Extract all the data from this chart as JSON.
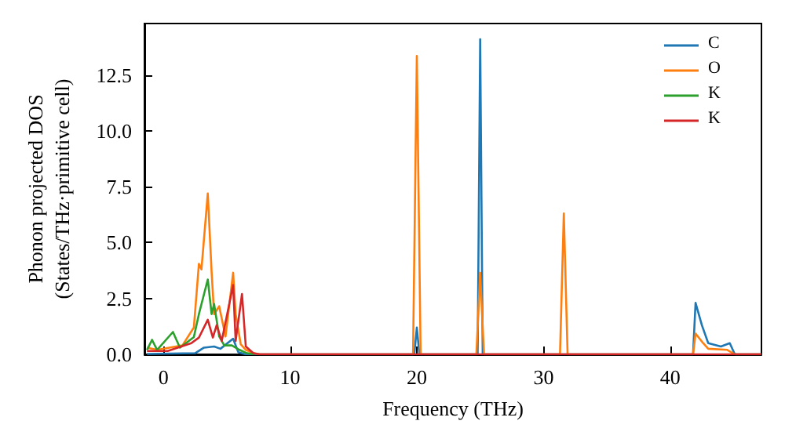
{
  "chart_data": {
    "type": "line",
    "xlabel": "Frequency (THz)",
    "ylabel": "Phonon projected DOS\n(States/THz·primitive cell)",
    "xlim": [
      -1.5,
      47.2
    ],
    "ylim": [
      0,
      14.8
    ],
    "xticks": [
      0,
      10,
      20,
      30,
      40
    ],
    "yticks": [
      {
        "value": 0,
        "label": "0.0"
      },
      2.5,
      {
        "value": 5,
        "label": "5.0"
      },
      7.5,
      {
        "value": 10,
        "label": "10.0"
      },
      12.5
    ],
    "grid": false,
    "legend": "top right",
    "marker": "none",
    "line_style": "solid",
    "series": [
      {
        "name": "C",
        "color": "#1f77b4",
        "x": [
          -1.3,
          2.5,
          3.2,
          4.0,
          4.5,
          5.5,
          5.9,
          6.5,
          19.8,
          20.0,
          20.2,
          24.8,
          25.0,
          25.2,
          41.8,
          42.0,
          42.5,
          43.0,
          44.0,
          44.7,
          45.1,
          47.2
        ],
        "values": [
          0.02,
          0.05,
          0.3,
          0.35,
          0.25,
          0.7,
          0.1,
          0,
          0,
          1.2,
          0,
          0,
          14.1,
          0,
          0,
          2.3,
          1.3,
          0.5,
          0.35,
          0.5,
          0,
          0
        ]
      },
      {
        "name": "O",
        "color": "#ff7f0e",
        "x": [
          -1.3,
          -0.5,
          1.5,
          2.4,
          2.8,
          3.0,
          3.5,
          3.8,
          4.0,
          4.4,
          4.9,
          5.5,
          5.7,
          6.1,
          6.5,
          7.1,
          7.6,
          19.7,
          20.0,
          20.3,
          24.7,
          25.0,
          25.3,
          31.3,
          31.6,
          31.9,
          41.8,
          42.0,
          42.6,
          43.0,
          44.5,
          45.1,
          47.2
        ],
        "values": [
          0.3,
          0.2,
          0.4,
          1.2,
          4.05,
          3.8,
          7.2,
          3.7,
          1.8,
          2.15,
          0.8,
          3.65,
          1.8,
          0.45,
          0.2,
          0.05,
          0,
          0,
          13.35,
          0,
          0,
          3.65,
          0,
          0,
          6.3,
          0,
          0,
          0.93,
          0.5,
          0.25,
          0.2,
          0,
          0
        ]
      },
      {
        "name": "K",
        "color": "#2ca02c",
        "x": [
          -1.3,
          -0.9,
          -0.5,
          0.75,
          1.3,
          2.4,
          2.8,
          3.5,
          3.8,
          4.0,
          4.4,
          4.8,
          5.4,
          6.0,
          6.6,
          7.2
        ],
        "values": [
          0.2,
          0.65,
          0.2,
          1.0,
          0.3,
          0.77,
          1.8,
          3.35,
          1.8,
          2.25,
          0.8,
          0.4,
          0.4,
          0.2,
          0.05,
          0
        ]
      },
      {
        "name": "K",
        "color": "#d62728",
        "x": [
          -1.3,
          0.33,
          2.2,
          2.8,
          3.5,
          3.9,
          4.2,
          4.6,
          5.5,
          5.7,
          6.2,
          6.5,
          7.1,
          7.6,
          47.2
        ],
        "values": [
          0.15,
          0.15,
          0.5,
          0.75,
          1.55,
          0.75,
          1.3,
          0.6,
          3.1,
          0.6,
          2.7,
          0.35,
          0.05,
          0,
          0
        ]
      }
    ]
  }
}
